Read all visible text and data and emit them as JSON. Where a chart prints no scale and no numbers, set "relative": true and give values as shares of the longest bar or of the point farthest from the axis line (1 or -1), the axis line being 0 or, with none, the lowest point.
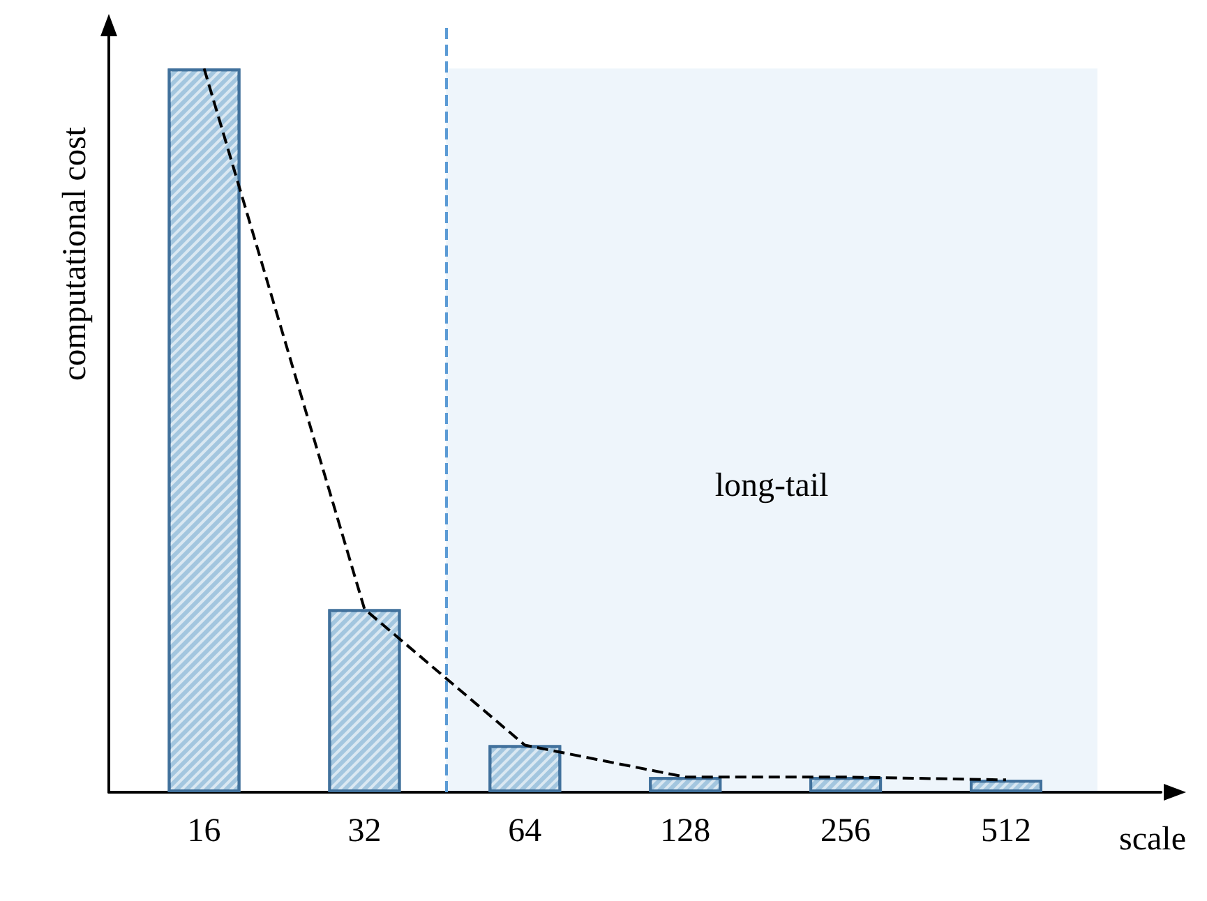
{
  "chart_data": {
    "type": "bar",
    "xlabel": "scale",
    "ylabel": "computational cost",
    "relative": true,
    "log": "x",
    "x": [
      16,
      32,
      64,
      128,
      256,
      512
    ],
    "xlim": [
      10.6,
      1000
    ],
    "xticks": [
      16,
      32,
      64,
      128,
      256,
      512
    ],
    "series": [
      {
        "color": "#a3c6df",
        "values": [
          1,
          0.253,
          0.065,
          0.021,
          0.021,
          0.017
        ]
      },
      {
        "type": "line",
        "color": "#000000",
        "line_style": "dashed",
        "marker": "none",
        "values": [
          1,
          0.253,
          0.065,
          0.021,
          0.021,
          0.017
        ]
      }
    ],
    "ref_lines": [
      {
        "axis": "x",
        "value": 45.5,
        "color": "#5b9bd5",
        "line_style": "dashed"
      }
    ],
    "bands": [
      {
        "axis": "x",
        "from": 45.5,
        "to": 760,
        "label": "long-tail",
        "color": "#5b9bd5"
      }
    ],
    "grid": false
  }
}
